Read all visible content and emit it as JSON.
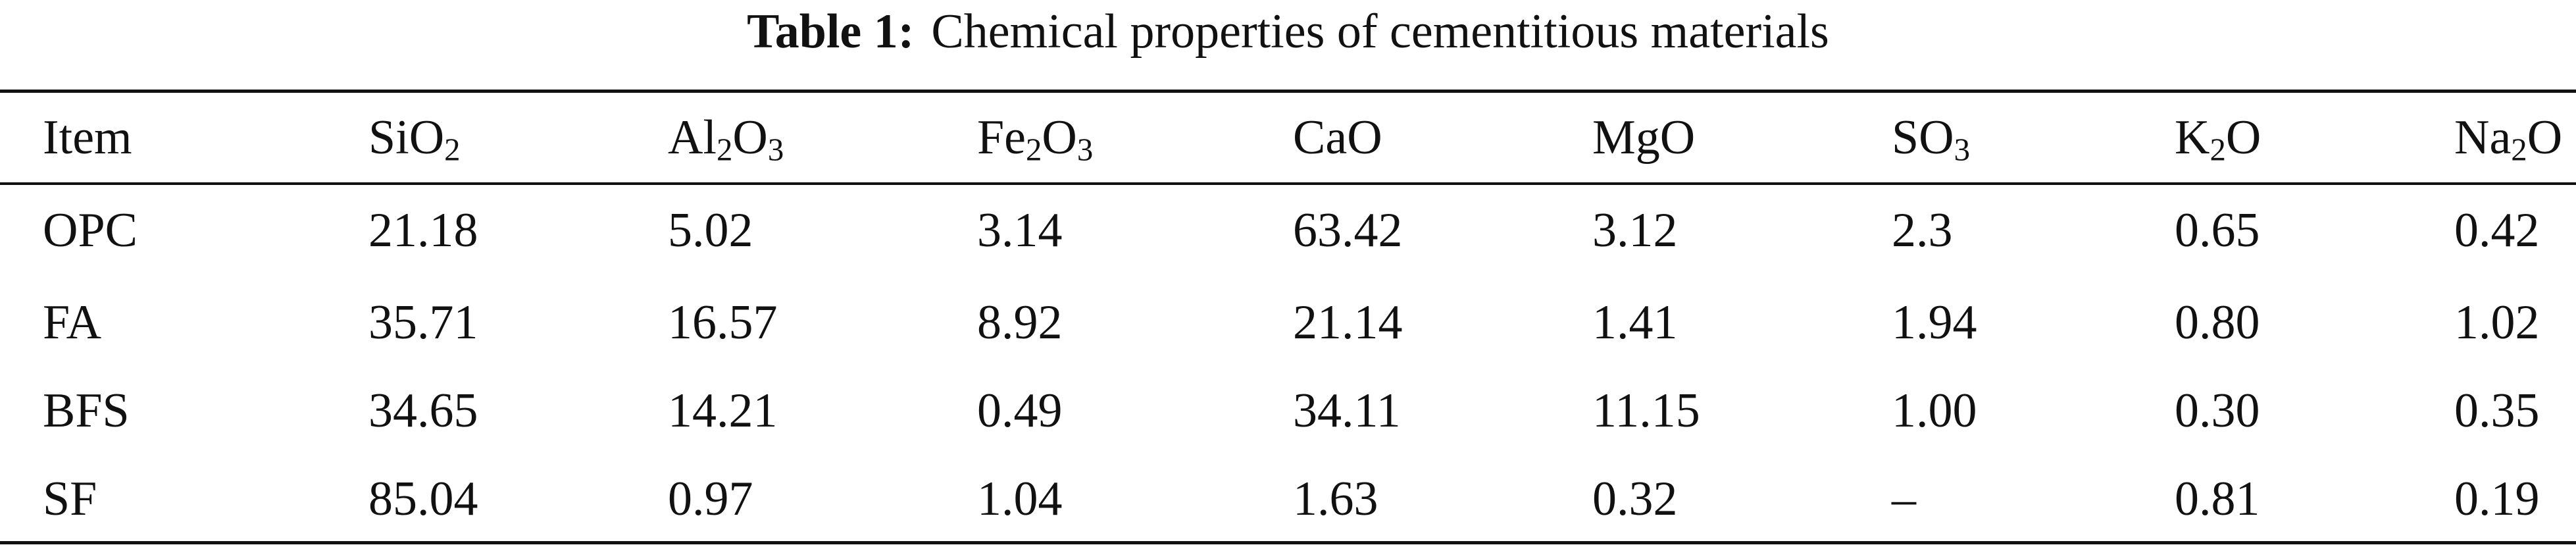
{
  "caption": {
    "label": "Table 1:",
    "text": "Chemical properties of cementitious materials"
  },
  "table": {
    "columns": [
      {
        "base": "Item",
        "parts": [
          [
            "Item",
            ""
          ]
        ]
      },
      {
        "parts": [
          [
            "Si",
            ""
          ],
          [
            "O",
            "2"
          ]
        ]
      },
      {
        "parts": [
          [
            "Al",
            "2"
          ],
          [
            "O",
            "3"
          ]
        ]
      },
      {
        "parts": [
          [
            "Fe",
            "2"
          ],
          [
            "O",
            "3"
          ]
        ]
      },
      {
        "parts": [
          [
            "CaO",
            ""
          ]
        ]
      },
      {
        "parts": [
          [
            "MgO",
            ""
          ]
        ]
      },
      {
        "parts": [
          [
            "SO",
            "3"
          ]
        ]
      },
      {
        "parts": [
          [
            "K",
            "2"
          ],
          [
            "O",
            ""
          ]
        ]
      },
      {
        "parts": [
          [
            "Na",
            "2"
          ],
          [
            "O",
            ""
          ]
        ]
      }
    ],
    "rows": [
      [
        "OPC",
        "21.18",
        "5.02",
        "3.14",
        "63.42",
        "3.12",
        "2.3",
        "0.65",
        "0.42"
      ],
      [
        "FA",
        "35.71",
        "16.57",
        "8.92",
        "21.14",
        "1.41",
        "1.94",
        "0.80",
        "1.02"
      ],
      [
        "BFS",
        "34.65",
        "14.21",
        "0.49",
        "34.11",
        "11.15",
        "1.00",
        "0.30",
        "0.35"
      ],
      [
        "SF",
        "85.04",
        "0.97",
        "1.04",
        "1.63",
        "0.32",
        "–",
        "0.81",
        "0.19"
      ]
    ]
  }
}
